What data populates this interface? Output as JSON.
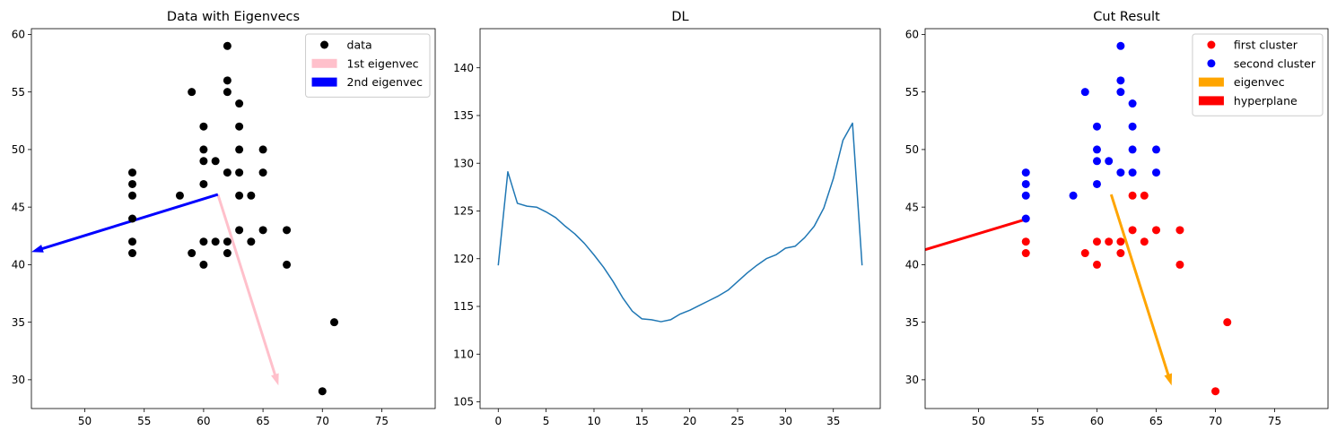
{
  "chart_data": [
    {
      "type": "scatter",
      "title": "Data with Eigenvecs",
      "xlim": [
        45.5,
        79.5
      ],
      "ylim": [
        27.5,
        60.5
      ],
      "xticks": [
        50,
        55,
        60,
        65,
        70,
        75
      ],
      "yticks": [
        30,
        35,
        40,
        45,
        50,
        55,
        60
      ],
      "series": [
        {
          "name": "data",
          "color": "#000000",
          "points": [
            [
              54,
              48
            ],
            [
              54,
              47
            ],
            [
              54,
              46
            ],
            [
              54,
              44
            ],
            [
              54,
              42
            ],
            [
              54,
              41
            ],
            [
              58,
              46
            ],
            [
              59,
              55
            ],
            [
              59,
              41
            ],
            [
              60,
              52
            ],
            [
              60,
              50
            ],
            [
              60,
              49
            ],
            [
              60,
              47
            ],
            [
              60,
              42
            ],
            [
              60,
              40
            ],
            [
              61,
              49
            ],
            [
              61,
              42
            ],
            [
              62,
              59
            ],
            [
              62,
              56
            ],
            [
              62,
              55
            ],
            [
              62,
              48
            ],
            [
              62,
              42
            ],
            [
              62,
              41
            ],
            [
              63,
              54
            ],
            [
              63,
              52
            ],
            [
              63,
              50
            ],
            [
              63,
              48
            ],
            [
              63,
              46
            ],
            [
              63,
              43
            ],
            [
              64,
              46
            ],
            [
              64,
              42
            ],
            [
              65,
              50
            ],
            [
              65,
              48
            ],
            [
              65,
              43
            ],
            [
              67,
              43
            ],
            [
              67,
              40
            ],
            [
              70,
              29
            ],
            [
              71,
              35
            ]
          ]
        }
      ],
      "arrows": [
        {
          "name": "1st eigenvec",
          "color": "#ffc0cb",
          "from": [
            61.2,
            46.1
          ],
          "to": [
            66.3,
            29.5
          ]
        },
        {
          "name": "2nd eigenvec",
          "color": "#0000ff",
          "from": [
            61.2,
            46.1
          ],
          "to": [
            45.5,
            41.1
          ]
        }
      ],
      "legend": {
        "position": "top-right"
      }
    },
    {
      "type": "line",
      "title": "DL",
      "xlim": [
        -1.9,
        39.9
      ],
      "ylim": [
        104.3,
        144.1
      ],
      "xticks": [
        0,
        5,
        10,
        15,
        20,
        25,
        30,
        35
      ],
      "yticks": [
        105,
        110,
        115,
        120,
        125,
        130,
        135,
        140
      ],
      "series": [
        {
          "color": "#1f77b4",
          "x": [
            0,
            1,
            2,
            3,
            4,
            5,
            6,
            7,
            8,
            9,
            10,
            11,
            12,
            13,
            14,
            15,
            16,
            17,
            18,
            19,
            20,
            21,
            22,
            23,
            24,
            25,
            26,
            27,
            28,
            29,
            30,
            31,
            32,
            33,
            34,
            35,
            36,
            37,
            38
          ],
          "values": [
            119.3,
            129.1,
            125.8,
            125.5,
            125.4,
            124.9,
            124.3,
            123.4,
            122.6,
            121.6,
            120.4,
            119.1,
            117.6,
            115.9,
            114.5,
            113.7,
            113.6,
            113.4,
            113.6,
            114.2,
            114.6,
            115.1,
            115.6,
            116.1,
            116.7,
            117.6,
            118.5,
            119.3,
            120.0,
            120.4,
            121.1,
            121.3,
            122.2,
            123.4,
            125.3,
            128.4,
            132.4,
            134.2,
            119.3
          ]
        }
      ]
    },
    {
      "type": "scatter",
      "title": "Cut Result",
      "xlim": [
        45.5,
        79.5
      ],
      "ylim": [
        27.5,
        60.5
      ],
      "xticks": [
        50,
        55,
        60,
        65,
        70,
        75
      ],
      "yticks": [
        30,
        35,
        40,
        45,
        50,
        55,
        60
      ],
      "series": [
        {
          "name": "first cluster",
          "color": "#ff0000",
          "points": [
            [
              54,
              42
            ],
            [
              54,
              41
            ],
            [
              59,
              41
            ],
            [
              60,
              42
            ],
            [
              60,
              40
            ],
            [
              61,
              42
            ],
            [
              62,
              42
            ],
            [
              62,
              41
            ],
            [
              63,
              46
            ],
            [
              63,
              43
            ],
            [
              64,
              46
            ],
            [
              64,
              42
            ],
            [
              65,
              43
            ],
            [
              67,
              43
            ],
            [
              67,
              40
            ],
            [
              70,
              29
            ],
            [
              71,
              35
            ]
          ]
        },
        {
          "name": "second cluster",
          "color": "#0000ff",
          "points": [
            [
              54,
              48
            ],
            [
              54,
              47
            ],
            [
              54,
              46
            ],
            [
              54,
              44
            ],
            [
              58,
              46
            ],
            [
              59,
              55
            ],
            [
              60,
              52
            ],
            [
              60,
              50
            ],
            [
              60,
              49
            ],
            [
              60,
              47
            ],
            [
              61,
              49
            ],
            [
              62,
              59
            ],
            [
              62,
              56
            ],
            [
              62,
              55
            ],
            [
              62,
              48
            ],
            [
              63,
              54
            ],
            [
              63,
              52
            ],
            [
              63,
              50
            ],
            [
              63,
              48
            ],
            [
              65,
              50
            ],
            [
              65,
              48
            ]
          ]
        }
      ],
      "arrows": [
        {
          "name": "eigenvec",
          "color": "#ffa500",
          "from": [
            61.2,
            46.1
          ],
          "to": [
            66.3,
            29.5
          ]
        },
        {
          "name": "hyperplane",
          "color": "#ff0000",
          "from": [
            54.2,
            44.0
          ],
          "to": [
            45.5,
            41.3
          ],
          "head": false
        }
      ],
      "legend": {
        "position": "top-right"
      }
    }
  ]
}
